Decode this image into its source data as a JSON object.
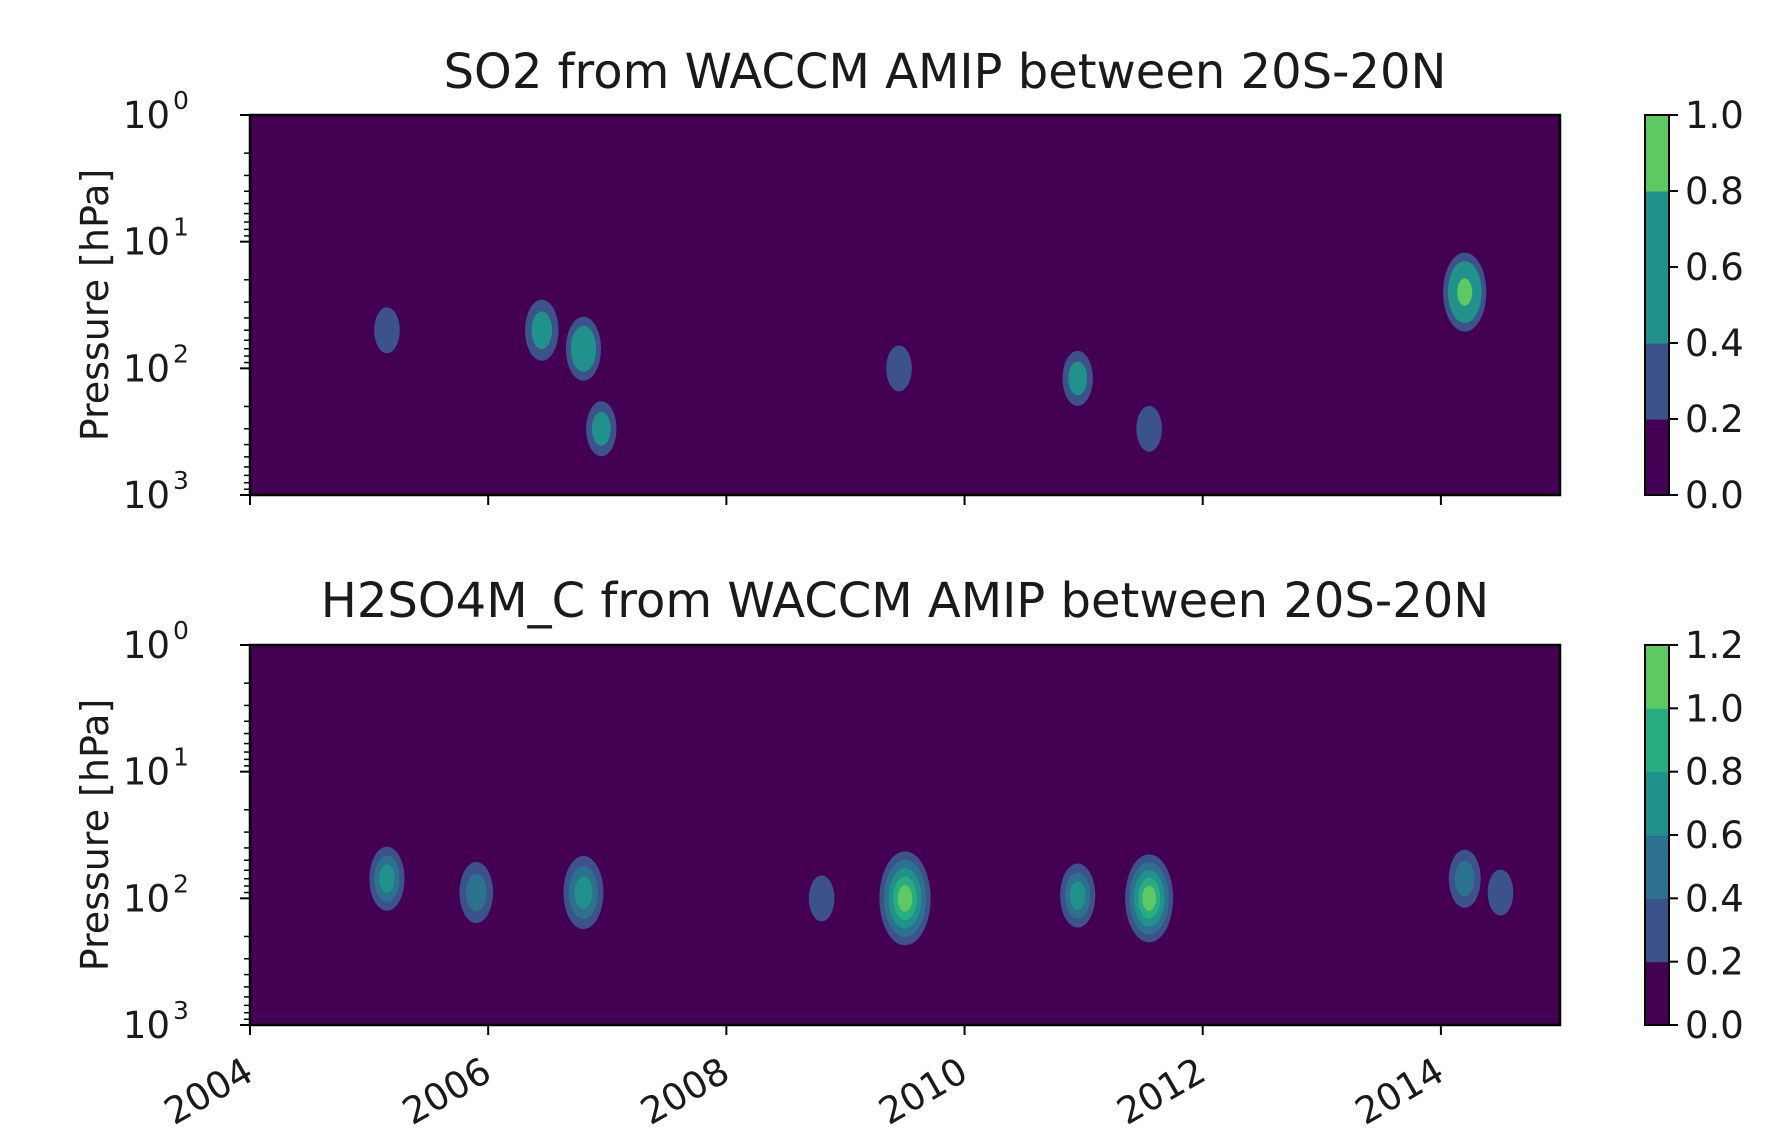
{
  "chart_data": [
    {
      "type": "heatmap",
      "title": "SO2 from WACCM AMIP between 20S-20N",
      "ylabel": "Pressure [hPa]",
      "xlabel": "",
      "x_tick_labels": [],
      "y_scale": "log",
      "y_inverted": true,
      "ylim": [
        1000,
        1
      ],
      "xlim": [
        2004,
        2015
      ],
      "y_ticks": [
        {
          "base": "10",
          "exp": "0"
        },
        {
          "base": "10",
          "exp": "1"
        },
        {
          "base": "10",
          "exp": "2"
        },
        {
          "base": "10",
          "exp": "3"
        }
      ],
      "colorbar": {
        "label": "",
        "ticks": [
          "0.0",
          "0.2",
          "0.4",
          "0.6",
          "0.8",
          "1.0"
        ],
        "levels": [
          0,
          0.2,
          0.4,
          0.6,
          0.8,
          1.0
        ],
        "colors": [
          "#440154",
          "#3b528b",
          "#21918c",
          "#21918c",
          "#5ec962",
          "#fde725"
        ]
      },
      "features": [
        {
          "time": 2005.15,
          "pressure": 50,
          "peak": 0.3
        },
        {
          "time": 2006.45,
          "pressure": 50,
          "peak": 0.55
        },
        {
          "time": 2006.8,
          "pressure": 70,
          "peak": 0.6
        },
        {
          "time": 2006.95,
          "pressure": 300,
          "peak": 0.45
        },
        {
          "time": 2009.45,
          "pressure": 100,
          "peak": 0.3
        },
        {
          "time": 2010.95,
          "pressure": 120,
          "peak": 0.45
        },
        {
          "time": 2011.55,
          "pressure": 300,
          "peak": 0.3
        },
        {
          "time": 2014.2,
          "pressure": 25,
          "peak": 0.85
        }
      ]
    },
    {
      "type": "heatmap",
      "title": "H2SO4M_C from WACCM AMIP between 20S-20N",
      "ylabel": "Pressure [hPa]",
      "xlabel": "",
      "x_tick_labels": [
        "2004",
        "2006",
        "2008",
        "2010",
        "2012",
        "2014"
      ],
      "y_scale": "log",
      "y_inverted": true,
      "ylim": [
        1000,
        1
      ],
      "xlim": [
        2004,
        2015
      ],
      "y_ticks": [
        {
          "base": "10",
          "exp": "0"
        },
        {
          "base": "10",
          "exp": "1"
        },
        {
          "base": "10",
          "exp": "2"
        },
        {
          "base": "10",
          "exp": "3"
        }
      ],
      "colorbar": {
        "label": "",
        "ticks": [
          "0.0",
          "0.2",
          "0.4",
          "0.6",
          "0.8",
          "1.0",
          "1.2"
        ],
        "levels": [
          0,
          0.2,
          0.4,
          0.6,
          0.8,
          1.0,
          1.2
        ],
        "colors": [
          "#440154",
          "#3b528b",
          "#2c728e",
          "#21918c",
          "#27ad81",
          "#5ec962",
          "#fde725"
        ]
      },
      "features": [
        {
          "time": 2005.15,
          "pressure": 70,
          "peak": 0.6
        },
        {
          "time": 2005.9,
          "pressure": 90,
          "peak": 0.55
        },
        {
          "time": 2006.8,
          "pressure": 90,
          "peak": 0.75
        },
        {
          "time": 2008.8,
          "pressure": 100,
          "peak": 0.3
        },
        {
          "time": 2009.5,
          "pressure": 100,
          "peak": 1.1
        },
        {
          "time": 2010.95,
          "pressure": 95,
          "peak": 0.6
        },
        {
          "time": 2011.55,
          "pressure": 100,
          "peak": 1.0
        },
        {
          "time": 2014.2,
          "pressure": 70,
          "peak": 0.5
        },
        {
          "time": 2014.5,
          "pressure": 90,
          "peak": 0.3
        }
      ]
    }
  ]
}
